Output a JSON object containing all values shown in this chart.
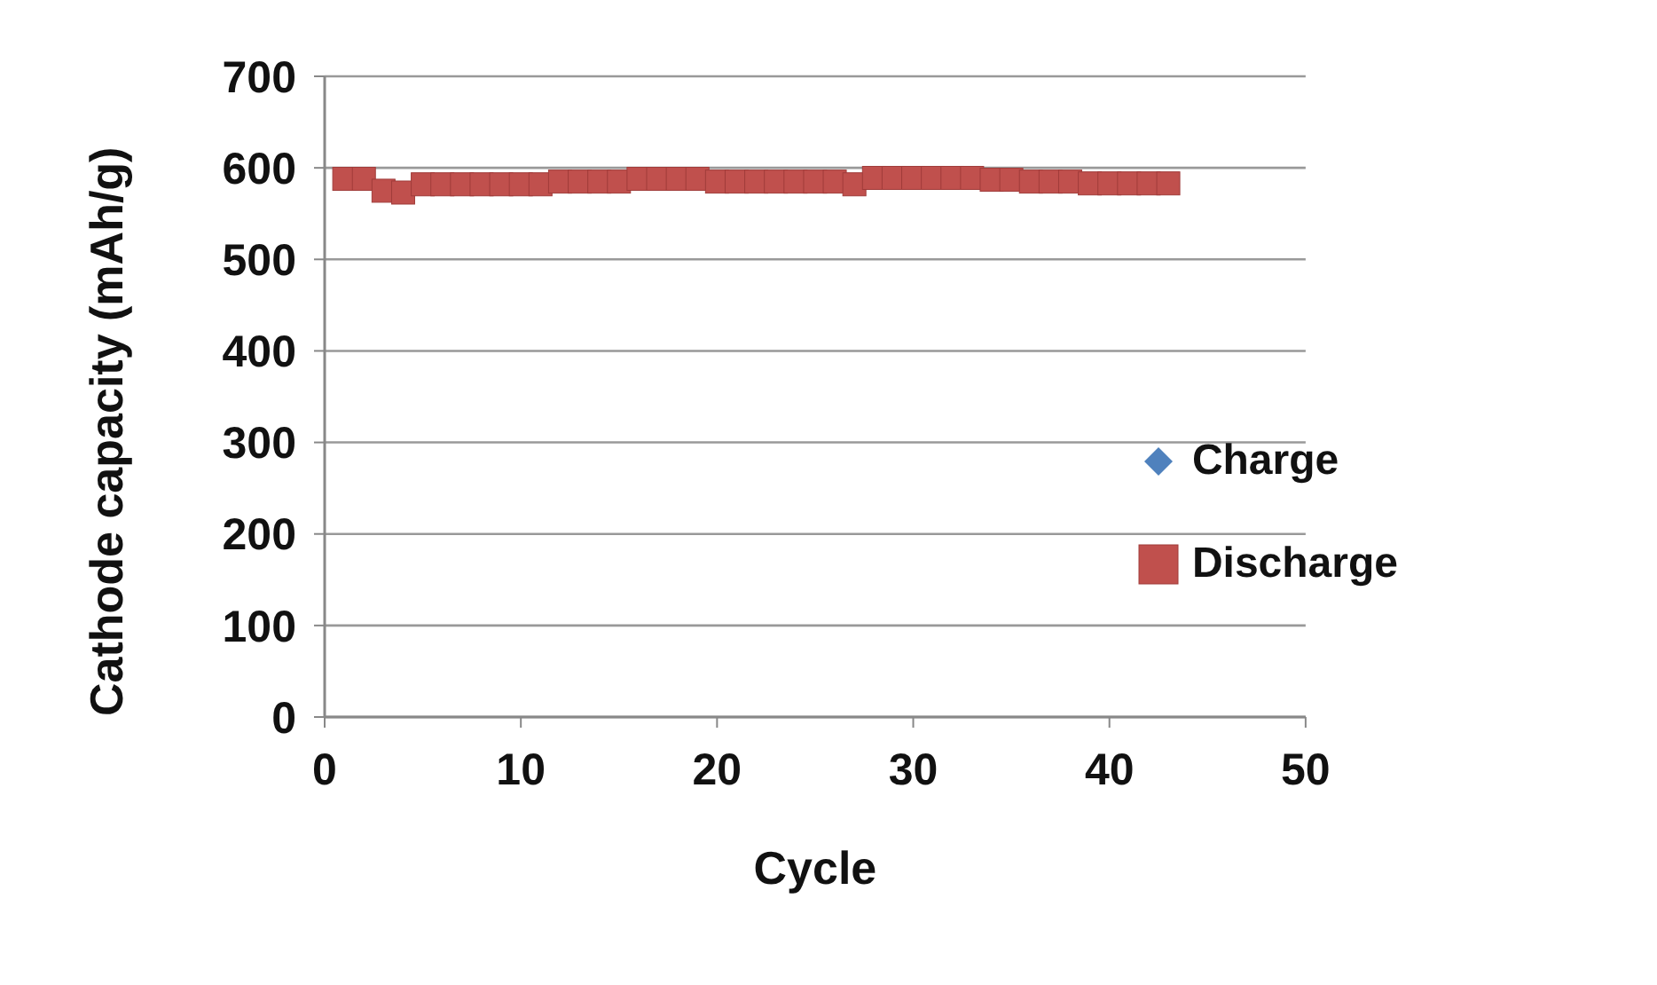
{
  "chart_data": {
    "type": "scatter",
    "xlabel": "Cycle",
    "ylabel": "Cathode capacity (mAh/g)",
    "x": [
      1,
      2,
      3,
      4,
      5,
      6,
      7,
      8,
      9,
      10,
      11,
      12,
      13,
      14,
      15,
      16,
      17,
      18,
      19,
      20,
      21,
      22,
      23,
      24,
      25,
      26,
      27,
      28,
      29,
      30,
      31,
      32,
      33,
      34,
      35,
      36,
      37,
      38,
      39,
      40,
      41,
      42,
      43
    ],
    "series": [
      {
        "name": "Charge",
        "color": "#4f81bd",
        "marker": "diamond",
        "values": [
          null,
          null,
          null,
          null,
          null,
          null,
          null,
          null,
          null,
          null,
          null,
          null,
          null,
          null,
          null,
          null,
          null,
          null,
          null,
          null,
          null,
          null,
          null,
          null,
          null,
          null,
          null,
          null,
          null,
          null,
          null,
          null,
          null,
          null,
          null,
          null,
          null,
          null,
          null,
          null,
          null,
          null,
          null
        ]
      },
      {
        "name": "Discharge",
        "color": "#c0504d",
        "marker": "square",
        "values": [
          588,
          588,
          575,
          573,
          582,
          582,
          582,
          582,
          582,
          582,
          582,
          585,
          585,
          585,
          585,
          588,
          588,
          588,
          588,
          585,
          585,
          585,
          585,
          585,
          585,
          585,
          582,
          589,
          589,
          589,
          589,
          589,
          589,
          587,
          587,
          585,
          585,
          585,
          583,
          583,
          583,
          583,
          583
        ]
      }
    ],
    "xlim": [
      0,
      50
    ],
    "xticks": [
      0,
      10,
      20,
      30,
      40,
      50
    ],
    "ylim": [
      0,
      700
    ],
    "yticks": [
      0,
      100,
      200,
      300,
      400,
      500,
      600,
      700
    ],
    "grid": "y",
    "legend": "right"
  }
}
